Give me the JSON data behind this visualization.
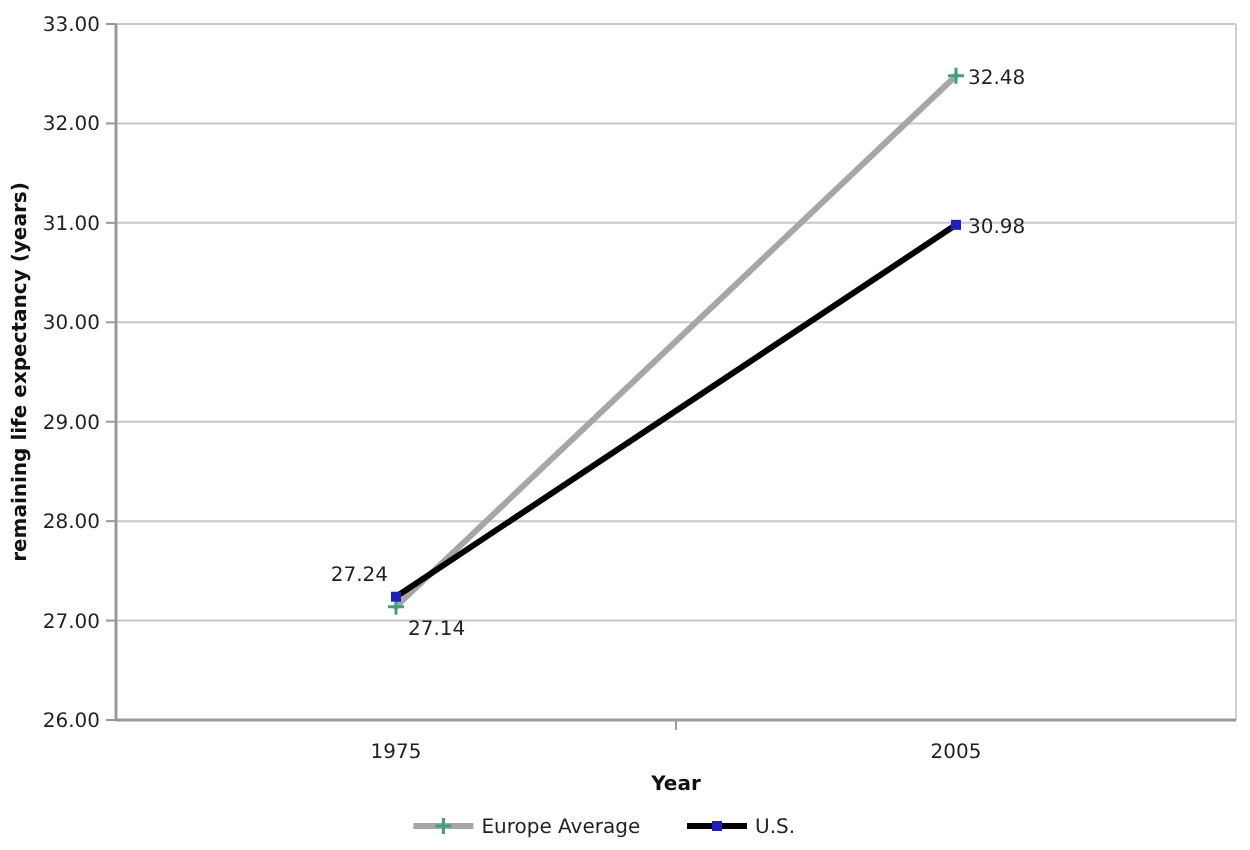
{
  "chart_data": {
    "type": "line",
    "xlabel": "Year",
    "ylabel": "remaining life expectancy (years)",
    "categories": [
      "1975",
      "2005"
    ],
    "series": [
      {
        "name": "Europe Average",
        "color": "#a6a6a6",
        "values": [
          27.14,
          32.48
        ],
        "marker": "cross"
      },
      {
        "name": "U.S.",
        "color": "#000000",
        "values": [
          27.24,
          30.98
        ],
        "marker": "square"
      }
    ],
    "ylim": [
      26,
      33
    ],
    "yticks": [
      {
        "value": 26,
        "label": "26.00"
      },
      {
        "value": 27,
        "label": "27.00"
      },
      {
        "value": 28,
        "label": "28.00"
      },
      {
        "value": 29,
        "label": "29.00"
      },
      {
        "value": 30,
        "label": "30.00"
      },
      {
        "value": 31,
        "label": "31.00"
      },
      {
        "value": 32,
        "label": "32.00"
      },
      {
        "value": 33,
        "label": "33.00"
      }
    ],
    "grid": "y",
    "legend": "bottom",
    "data_labels": true
  }
}
